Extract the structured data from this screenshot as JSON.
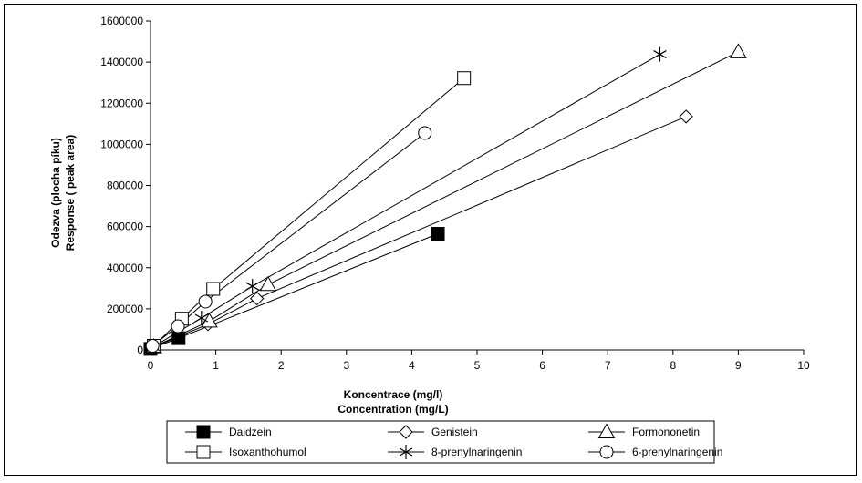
{
  "chart_data": {
    "type": "line",
    "xlabel_lines": [
      "Koncentrace (mg/l)",
      "Concentration (mg/L)"
    ],
    "ylabel_lines": [
      "Odezva (plocha píku)",
      "Response ( peak area)"
    ],
    "xlim": [
      0,
      10
    ],
    "ylim": [
      0,
      1600000
    ],
    "x_ticks": [
      "0",
      "1",
      "2",
      "3",
      "4",
      "5",
      "6",
      "7",
      "8",
      "9",
      "10"
    ],
    "y_ticks": [
      "0",
      "200000",
      "400000",
      "600000",
      "800000",
      "1000000",
      "1200000",
      "1400000",
      "1600000"
    ],
    "grid": false,
    "legend_position": "bottom",
    "series": [
      {
        "name": "Daidzein",
        "marker": "filled-square",
        "x": [
          0,
          0.43,
          4.4
        ],
        "y": [
          5000,
          57000,
          565000
        ]
      },
      {
        "name": "Genistein",
        "marker": "diamond",
        "x": [
          0.02,
          0.88,
          1.63,
          8.2
        ],
        "y": [
          10000,
          125000,
          250000,
          1135000
        ]
      },
      {
        "name": "Formononetin",
        "marker": "triangle",
        "x": [
          0.05,
          0.9,
          1.8,
          9.0
        ],
        "y": [
          15000,
          140000,
          318000,
          1450000
        ]
      },
      {
        "name": "Isoxanthohumol",
        "marker": "open-square",
        "x": [
          0.05,
          0.48,
          0.96,
          4.8
        ],
        "y": [
          20000,
          152000,
          297000,
          1322000
        ]
      },
      {
        "name": "8-prenylnaringenin",
        "marker": "star",
        "x": [
          0.04,
          0.78,
          1.56,
          7.8
        ],
        "y": [
          15000,
          155000,
          310000,
          1438000
        ]
      },
      {
        "name": "6-prenylnaringenin",
        "marker": "circle",
        "x": [
          0.03,
          0.42,
          0.84,
          4.2
        ],
        "y": [
          20000,
          115000,
          235000,
          1055000
        ]
      }
    ]
  }
}
